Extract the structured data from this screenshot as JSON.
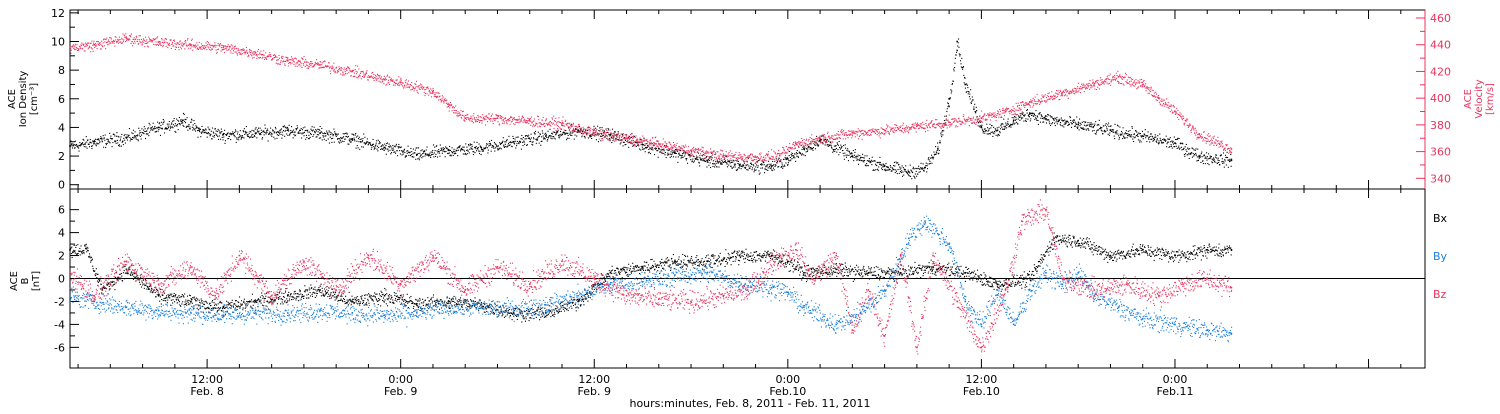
{
  "colors": {
    "black": "#000000",
    "pink": "#e8345f",
    "blue": "#1a7fdc"
  },
  "time_axis": {
    "start_hour": 3.5,
    "end_hour": 87.5,
    "data_end_hour": 75.5,
    "ticks": [
      {
        "hour": 12,
        "line1": "12:00",
        "line2": "Feb. 8"
      },
      {
        "hour": 24,
        "line1": "0:00",
        "line2": "Feb. 9"
      },
      {
        "hour": 36,
        "line1": "12:00",
        "line2": "Feb. 9"
      },
      {
        "hour": 48,
        "line1": "0:00",
        "line2": "Feb.10"
      },
      {
        "hour": 60,
        "line1": "12:00",
        "line2": "Feb.10"
      },
      {
        "hour": 72,
        "line1": "0:00",
        "line2": "Feb.11"
      }
    ],
    "minor_step_hours": 2,
    "title": "hours:minutes, Feb.  8, 2011 - Feb. 11, 2011"
  },
  "chart_data": [
    {
      "type": "scatter",
      "panel": "top",
      "y_left": {
        "label_lines": [
          "ACE",
          "Ion Density",
          "[cm⁻³]"
        ],
        "ylim": [
          -0.3,
          12.2
        ],
        "ticks": [
          "0",
          "2",
          "4",
          "6",
          "8",
          "10",
          "12"
        ]
      },
      "y_right": {
        "label_lines": [
          "ACE",
          "Velocity",
          "[km/s]"
        ],
        "ylim": [
          332,
          466
        ],
        "ticks": [
          "340",
          "360",
          "380",
          "400",
          "420",
          "440",
          "460"
        ]
      },
      "series": [
        {
          "key": "density",
          "axis": "left",
          "color": "black",
          "points": [
            [
              3.5,
              2.7
            ],
            [
              5,
              3.0
            ],
            [
              7,
              3.3
            ],
            [
              9,
              4.0
            ],
            [
              10.5,
              4.5
            ],
            [
              11.5,
              3.8
            ],
            [
              13,
              3.5
            ],
            [
              15,
              3.6
            ],
            [
              17,
              3.8
            ],
            [
              19,
              3.6
            ],
            [
              21,
              3.2
            ],
            [
              23,
              2.6
            ],
            [
              25,
              2.1
            ],
            [
              27,
              2.4
            ],
            [
              29,
              2.6
            ],
            [
              31,
              3.0
            ],
            [
              33,
              3.4
            ],
            [
              35,
              3.8
            ],
            [
              37,
              3.5
            ],
            [
              39,
              2.8
            ],
            [
              41,
              2.2
            ],
            [
              43,
              1.7
            ],
            [
              45,
              1.4
            ],
            [
              47,
              1.3
            ],
            [
              48,
              1.8
            ],
            [
              49,
              2.5
            ],
            [
              50,
              3.2
            ],
            [
              52,
              2.0
            ],
            [
              54,
              1.3
            ],
            [
              55.5,
              0.9
            ],
            [
              56.5,
              1.2
            ],
            [
              57.3,
              2.5
            ],
            [
              58,
              6.0
            ],
            [
              58.5,
              10.0
            ],
            [
              59,
              7.0
            ],
            [
              60,
              4.0
            ],
            [
              61,
              3.8
            ],
            [
              62,
              4.5
            ],
            [
              63,
              5.0
            ],
            [
              64,
              4.6
            ],
            [
              66,
              4.2
            ],
            [
              68,
              3.8
            ],
            [
              70,
              3.4
            ],
            [
              72,
              2.9
            ],
            [
              73.5,
              2.0
            ],
            [
              75.5,
              1.7
            ]
          ]
        },
        {
          "key": "velocity",
          "axis": "right",
          "color": "pink",
          "points": [
            [
              3.5,
              438
            ],
            [
              5,
              440
            ],
            [
              7,
              445
            ],
            [
              9,
              442
            ],
            [
              11,
              440
            ],
            [
              13,
              438
            ],
            [
              15,
              434
            ],
            [
              17,
              428
            ],
            [
              19,
              425
            ],
            [
              21,
              420
            ],
            [
              23,
              414
            ],
            [
              24,
              412
            ],
            [
              26,
              405
            ],
            [
              27,
              395
            ],
            [
              28,
              385
            ],
            [
              30,
              385
            ],
            [
              32,
              383
            ],
            [
              34,
              381
            ],
            [
              36,
              374
            ],
            [
              38,
              370
            ],
            [
              40,
              366
            ],
            [
              42,
              361
            ],
            [
              44,
              357
            ],
            [
              46,
              356
            ],
            [
              47.5,
              357
            ],
            [
              48.5,
              366
            ],
            [
              50,
              370
            ],
            [
              52,
              374
            ],
            [
              54,
              376
            ],
            [
              56,
              379
            ],
            [
              58,
              382
            ],
            [
              60,
              385
            ],
            [
              61.5,
              390
            ],
            [
              63,
              397
            ],
            [
              65,
              404
            ],
            [
              67,
              411
            ],
            [
              68.5,
              416
            ],
            [
              70,
              410
            ],
            [
              71,
              400
            ],
            [
              72,
              390
            ],
            [
              73.5,
              373
            ],
            [
              75.5,
              362
            ]
          ]
        }
      ]
    },
    {
      "type": "scatter",
      "panel": "bottom",
      "y_left": {
        "label_lines": [
          "ACE",
          "B",
          "[nT]"
        ],
        "ylim": [
          -7.8,
          7.8
        ],
        "ticks": [
          "-6",
          "-4",
          "-2",
          "0",
          "2",
          "4",
          "6"
        ]
      },
      "zero_line": true,
      "legend": [
        "Bx",
        "By",
        "Bz"
      ],
      "series": [
        {
          "key": "Bx",
          "name": "Bx",
          "color": "black",
          "points": [
            [
              3.5,
              2.5
            ],
            [
              4.5,
              2.6
            ],
            [
              5.5,
              -1.0
            ],
            [
              7,
              0.8
            ],
            [
              9,
              -1.5
            ],
            [
              11,
              -2.0
            ],
            [
              13,
              -2.5
            ],
            [
              15,
              -2.0
            ],
            [
              17,
              -1.5
            ],
            [
              19,
              -1.0
            ],
            [
              21,
              -2.0
            ],
            [
              23,
              -1.5
            ],
            [
              25,
              -2.2
            ],
            [
              27,
              -2.0
            ],
            [
              29,
              -2.3
            ],
            [
              31,
              -3.0
            ],
            [
              33,
              -3.0
            ],
            [
              35,
              -2.0
            ],
            [
              37,
              0.5
            ],
            [
              39,
              1.0
            ],
            [
              41,
              1.5
            ],
            [
              43,
              1.5
            ],
            [
              45,
              2.0
            ],
            [
              47,
              2.0
            ],
            [
              48,
              1.5
            ],
            [
              49,
              0.5
            ],
            [
              51,
              0.8
            ],
            [
              53,
              0.5
            ],
            [
              55,
              0.5
            ],
            [
              57,
              1.0
            ],
            [
              59,
              0.5
            ],
            [
              61,
              -0.5
            ],
            [
              63,
              0.0
            ],
            [
              64.5,
              3.5
            ],
            [
              66,
              3.3
            ],
            [
              68,
              2.0
            ],
            [
              70,
              2.5
            ],
            [
              72,
              2.0
            ],
            [
              74,
              2.5
            ],
            [
              75.5,
              2.5
            ]
          ]
        },
        {
          "key": "By",
          "name": "By",
          "color": "blue",
          "points": [
            [
              3.5,
              -1.5
            ],
            [
              5,
              -2.0
            ],
            [
              7,
              -2.5
            ],
            [
              9,
              -2.8
            ],
            [
              11,
              -3.0
            ],
            [
              13,
              -3.2
            ],
            [
              15,
              -3.0
            ],
            [
              17,
              -3.0
            ],
            [
              19,
              -2.8
            ],
            [
              21,
              -3.0
            ],
            [
              23,
              -3.2
            ],
            [
              25,
              -3.0
            ],
            [
              27,
              -2.5
            ],
            [
              29,
              -2.5
            ],
            [
              31,
              -2.6
            ],
            [
              33,
              -2.3
            ],
            [
              35,
              -1.5
            ],
            [
              37,
              -0.5
            ],
            [
              39,
              -0.3
            ],
            [
              41,
              0.3
            ],
            [
              43,
              0.5
            ],
            [
              45,
              -0.3
            ],
            [
              47,
              -0.8
            ],
            [
              48,
              -1.2
            ],
            [
              49,
              -2.5
            ],
            [
              51,
              -4.0
            ],
            [
              52.5,
              -3.0
            ],
            [
              54,
              -1.0
            ],
            [
              55.5,
              3.5
            ],
            [
              56.5,
              5.0
            ],
            [
              58,
              3.0
            ],
            [
              59,
              -2.0
            ],
            [
              60,
              -4.0
            ],
            [
              61,
              -1.0
            ],
            [
              62,
              -4.0
            ],
            [
              63,
              -1.0
            ],
            [
              64,
              0.5
            ],
            [
              65,
              -0.5
            ],
            [
              66,
              0.5
            ],
            [
              67,
              -1.5
            ],
            [
              68.5,
              -2.5
            ],
            [
              70,
              -3.5
            ],
            [
              72,
              -4.0
            ],
            [
              74,
              -4.5
            ],
            [
              75.5,
              -4.8
            ]
          ]
        },
        {
          "key": "Bz",
          "name": "Bz",
          "color": "pink",
          "points": [
            [
              3.5,
              0.5
            ],
            [
              5,
              -1.5
            ],
            [
              7,
              1.5
            ],
            [
              9,
              -0.5
            ],
            [
              11,
              1.0
            ],
            [
              12.5,
              -1.5
            ],
            [
              14,
              2.0
            ],
            [
              16,
              -1.5
            ],
            [
              18,
              1.5
            ],
            [
              20,
              -1.0
            ],
            [
              22,
              2.0
            ],
            [
              24,
              -0.5
            ],
            [
              26,
              2.0
            ],
            [
              28,
              -1.0
            ],
            [
              30,
              1.0
            ],
            [
              32,
              -0.5
            ],
            [
              34,
              1.5
            ],
            [
              36,
              0.0
            ],
            [
              38,
              -1.5
            ],
            [
              40,
              -1.8
            ],
            [
              42,
              -2.0
            ],
            [
              44,
              -1.5
            ],
            [
              45.5,
              -1.0
            ],
            [
              46.5,
              0.5
            ],
            [
              47.5,
              2.0
            ],
            [
              48.5,
              2.5
            ],
            [
              49.5,
              0.0
            ],
            [
              51,
              2.0
            ],
            [
              52,
              -4.5
            ],
            [
              53,
              -1.0
            ],
            [
              54,
              -5.0
            ],
            [
              55,
              2.0
            ],
            [
              56,
              -6.0
            ],
            [
              57,
              2.0
            ],
            [
              58.5,
              -2.0
            ],
            [
              60,
              -6.0
            ],
            [
              61.5,
              -1.0
            ],
            [
              62.5,
              5.0
            ],
            [
              64,
              6.0
            ],
            [
              65,
              0.0
            ],
            [
              67,
              -1.0
            ],
            [
              69,
              -0.5
            ],
            [
              71,
              -1.5
            ],
            [
              72.5,
              -0.5
            ],
            [
              74,
              0.0
            ],
            [
              75.5,
              -0.8
            ]
          ]
        }
      ]
    }
  ]
}
